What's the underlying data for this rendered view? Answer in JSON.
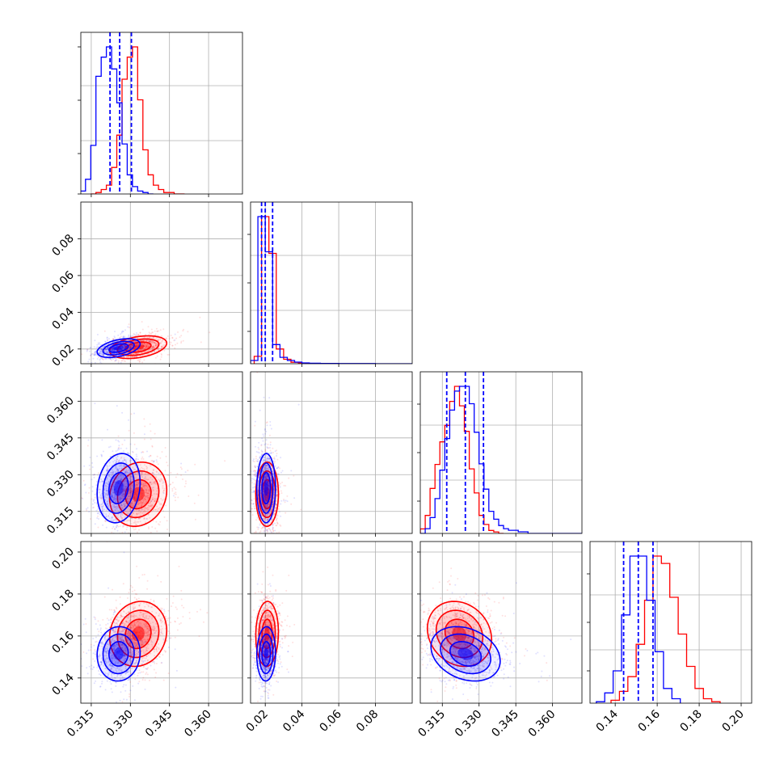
{
  "chart_data": {
    "type": "scatter",
    "subtype": "corner-plot",
    "title": "",
    "grid": true,
    "legend": "none",
    "colors": {
      "series_a": "#ff0000",
      "series_b": "#0000ff"
    },
    "parameters": [
      {
        "index": 0,
        "range": [
          0.311,
          0.373
        ],
        "ticks": [
          "0.315",
          "0.330",
          "0.345",
          "0.360"
        ]
      },
      {
        "index": 1,
        "range": [
          0.012,
          0.1
        ],
        "ticks": [
          "0.02",
          "0.04",
          "0.06",
          "0.08"
        ]
      },
      {
        "index": 2,
        "range": [
          0.306,
          0.372
        ],
        "ticks": [
          "0.315",
          "0.330",
          "0.345",
          "0.360"
        ]
      },
      {
        "index": 3,
        "range": [
          0.128,
          0.205
        ],
        "ticks": [
          "0.14",
          "0.16",
          "0.18",
          "0.20"
        ]
      }
    ],
    "series": [
      {
        "color": "#ff0000",
        "histograms": [
          {
            "edges": [
              0.3148,
              0.3168,
              0.3188,
              0.3208,
              0.3228,
              0.3248,
              0.3268,
              0.3288,
              0.3308,
              0.3328,
              0.3348,
              0.3368,
              0.3388,
              0.3408,
              0.3428,
              0.3448,
              0.3468,
              0.3488,
              0.3508
            ],
            "counts": [
              0,
              1,
              3,
              6,
              18,
              40,
              78,
              93,
              100,
              64,
              30,
              13,
              6,
              3,
              1,
              1,
              0,
              0
            ]
          },
          {
            "edges": [
              0.014,
              0.018,
              0.022,
              0.026,
              0.03,
              0.034,
              0.038,
              0.042,
              0.046,
              0.05
            ],
            "counts": [
              5,
              100,
              75,
              10,
              3,
              1,
              0.5,
              0,
              0
            ]
          },
          {
            "edges": [
              0.304,
              0.306,
              0.308,
              0.31,
              0.312,
              0.314,
              0.316,
              0.318,
              0.32,
              0.322,
              0.324,
              0.326,
              0.328,
              0.33,
              0.332,
              0.334,
              0.336,
              0.338,
              0.34
            ],
            "counts": [
              0,
              3,
              12,
              30,
              46,
              61,
              72,
              88,
              98,
              85,
              68,
              43,
              27,
              12,
              6,
              2,
              1,
              0
            ]
          },
          {
            "edges": [
              0.138,
              0.142,
              0.146,
              0.15,
              0.154,
              0.158,
              0.162,
              0.166,
              0.17,
              0.174,
              0.178,
              0.182,
              0.186,
              0.19
            ],
            "counts": [
              2,
              8,
              18,
              40,
              70,
              100,
              95,
              72,
              47,
              25,
              10,
              3,
              1
            ]
          }
        ],
        "means": [
          0.333,
          0.021,
          0.322,
          0.161
        ],
        "cov": [
          [
            3e-05,
            6e-06,
            4.5e-06,
            4.5e-06
          ],
          [
            6e-06,
            9.5e-06,
            3e-07,
            1.1e-06
          ],
          [
            4.5e-06,
            3e-07,
            4.3e-05,
            -8.5e-06
          ],
          [
            4.5e-06,
            1.1e-06,
            -8.5e-06,
            6e-05
          ]
        ]
      },
      {
        "color": "#0000ff",
        "histograms": [
          {
            "edges": [
              0.3108,
              0.3128,
              0.3148,
              0.3168,
              0.3188,
              0.3208,
              0.3228,
              0.3248,
              0.3268,
              0.3288,
              0.3308,
              0.3328,
              0.3348,
              0.3368,
              0.3388
            ],
            "counts": [
              2,
              10,
              33,
              80,
              93,
              100,
              85,
              62,
              34,
              13,
              5,
              2,
              1,
              0
            ]
          },
          {
            "edges": [
              0.012,
              0.016,
              0.02,
              0.024,
              0.028,
              0.032,
              0.036,
              0.04,
              0.044,
              0.05,
              0.06,
              0.08,
              0.1
            ],
            "counts": [
              2,
              92,
              70,
              12,
              4,
              2,
              1,
              0.5,
              0.3,
              0.2,
              0.1,
              0
            ]
          },
          {
            "edges": [
              0.306,
              0.308,
              0.31,
              0.312,
              0.314,
              0.316,
              0.318,
              0.32,
              0.322,
              0.324,
              0.326,
              0.328,
              0.33,
              0.332,
              0.334,
              0.336,
              0.338,
              0.34,
              0.342,
              0.346,
              0.35,
              0.372
            ],
            "counts": [
              0,
              3,
              10,
              22,
              40,
              60,
              78,
              90,
              93,
              93,
              82,
              64,
              44,
              28,
              14,
              9,
              5,
              3,
              2,
              1,
              0
            ]
          },
          {
            "edges": [
              0.131,
              0.135,
              0.139,
              0.143,
              0.147,
              0.151,
              0.155,
              0.159,
              0.163,
              0.167,
              0.171
            ],
            "counts": [
              1,
              7,
              22,
              60,
              100,
              100,
              70,
              35,
              10,
              3
            ]
          }
        ],
        "quantiles": [
          [
            0.3222,
            0.3259,
            0.3304
          ],
          [
            0.018,
            0.02,
            0.024
          ],
          [
            0.3168,
            0.3244,
            0.3318
          ],
          [
            0.144,
            0.151,
            0.158
          ]
        ],
        "means": [
          0.3255,
          0.0205,
          0.3245,
          0.1515
        ],
        "cov": [
          [
            1.7e-05,
            4.5e-06,
            4.5e-06,
            1e-06
          ],
          [
            4.5e-06,
            6.5e-06,
            3e-07,
            8e-07
          ],
          [
            4.5e-06,
            3e-07,
            5e-05,
            -1.2e-05
          ],
          [
            1e-06,
            8e-07,
            -1.2e-05,
            4.2e-05
          ]
        ]
      }
    ]
  }
}
